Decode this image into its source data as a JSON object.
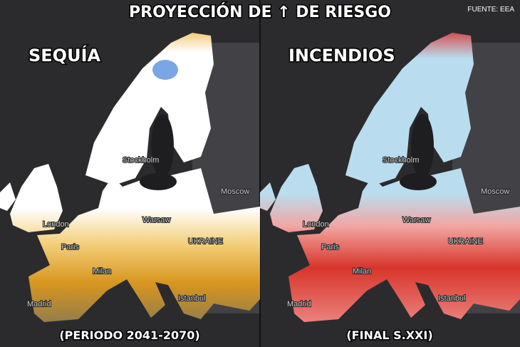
{
  "header": {
    "title": "PROYECCIÓN DE ↑ DE RIESGO",
    "source": "FUENTE: EEA"
  },
  "panels": [
    {
      "title": "SEQUÍA",
      "subtitle": "(PERIODO 2041-2070)",
      "labels": [
        "Stockholm",
        "Moscow",
        "London",
        "Warsaw",
        "Paris",
        "UKRAINE",
        "Milan",
        "Madrid",
        "Istanbul"
      ]
    },
    {
      "title": "INCENDIOS",
      "subtitle": "(FINAL S.XXI)",
      "labels": [
        "Stockholm",
        "Moscow",
        "London",
        "Warsaw",
        "Paris",
        "UKRAINE",
        "Milan",
        "Madrid",
        "Istanbul"
      ]
    }
  ]
}
